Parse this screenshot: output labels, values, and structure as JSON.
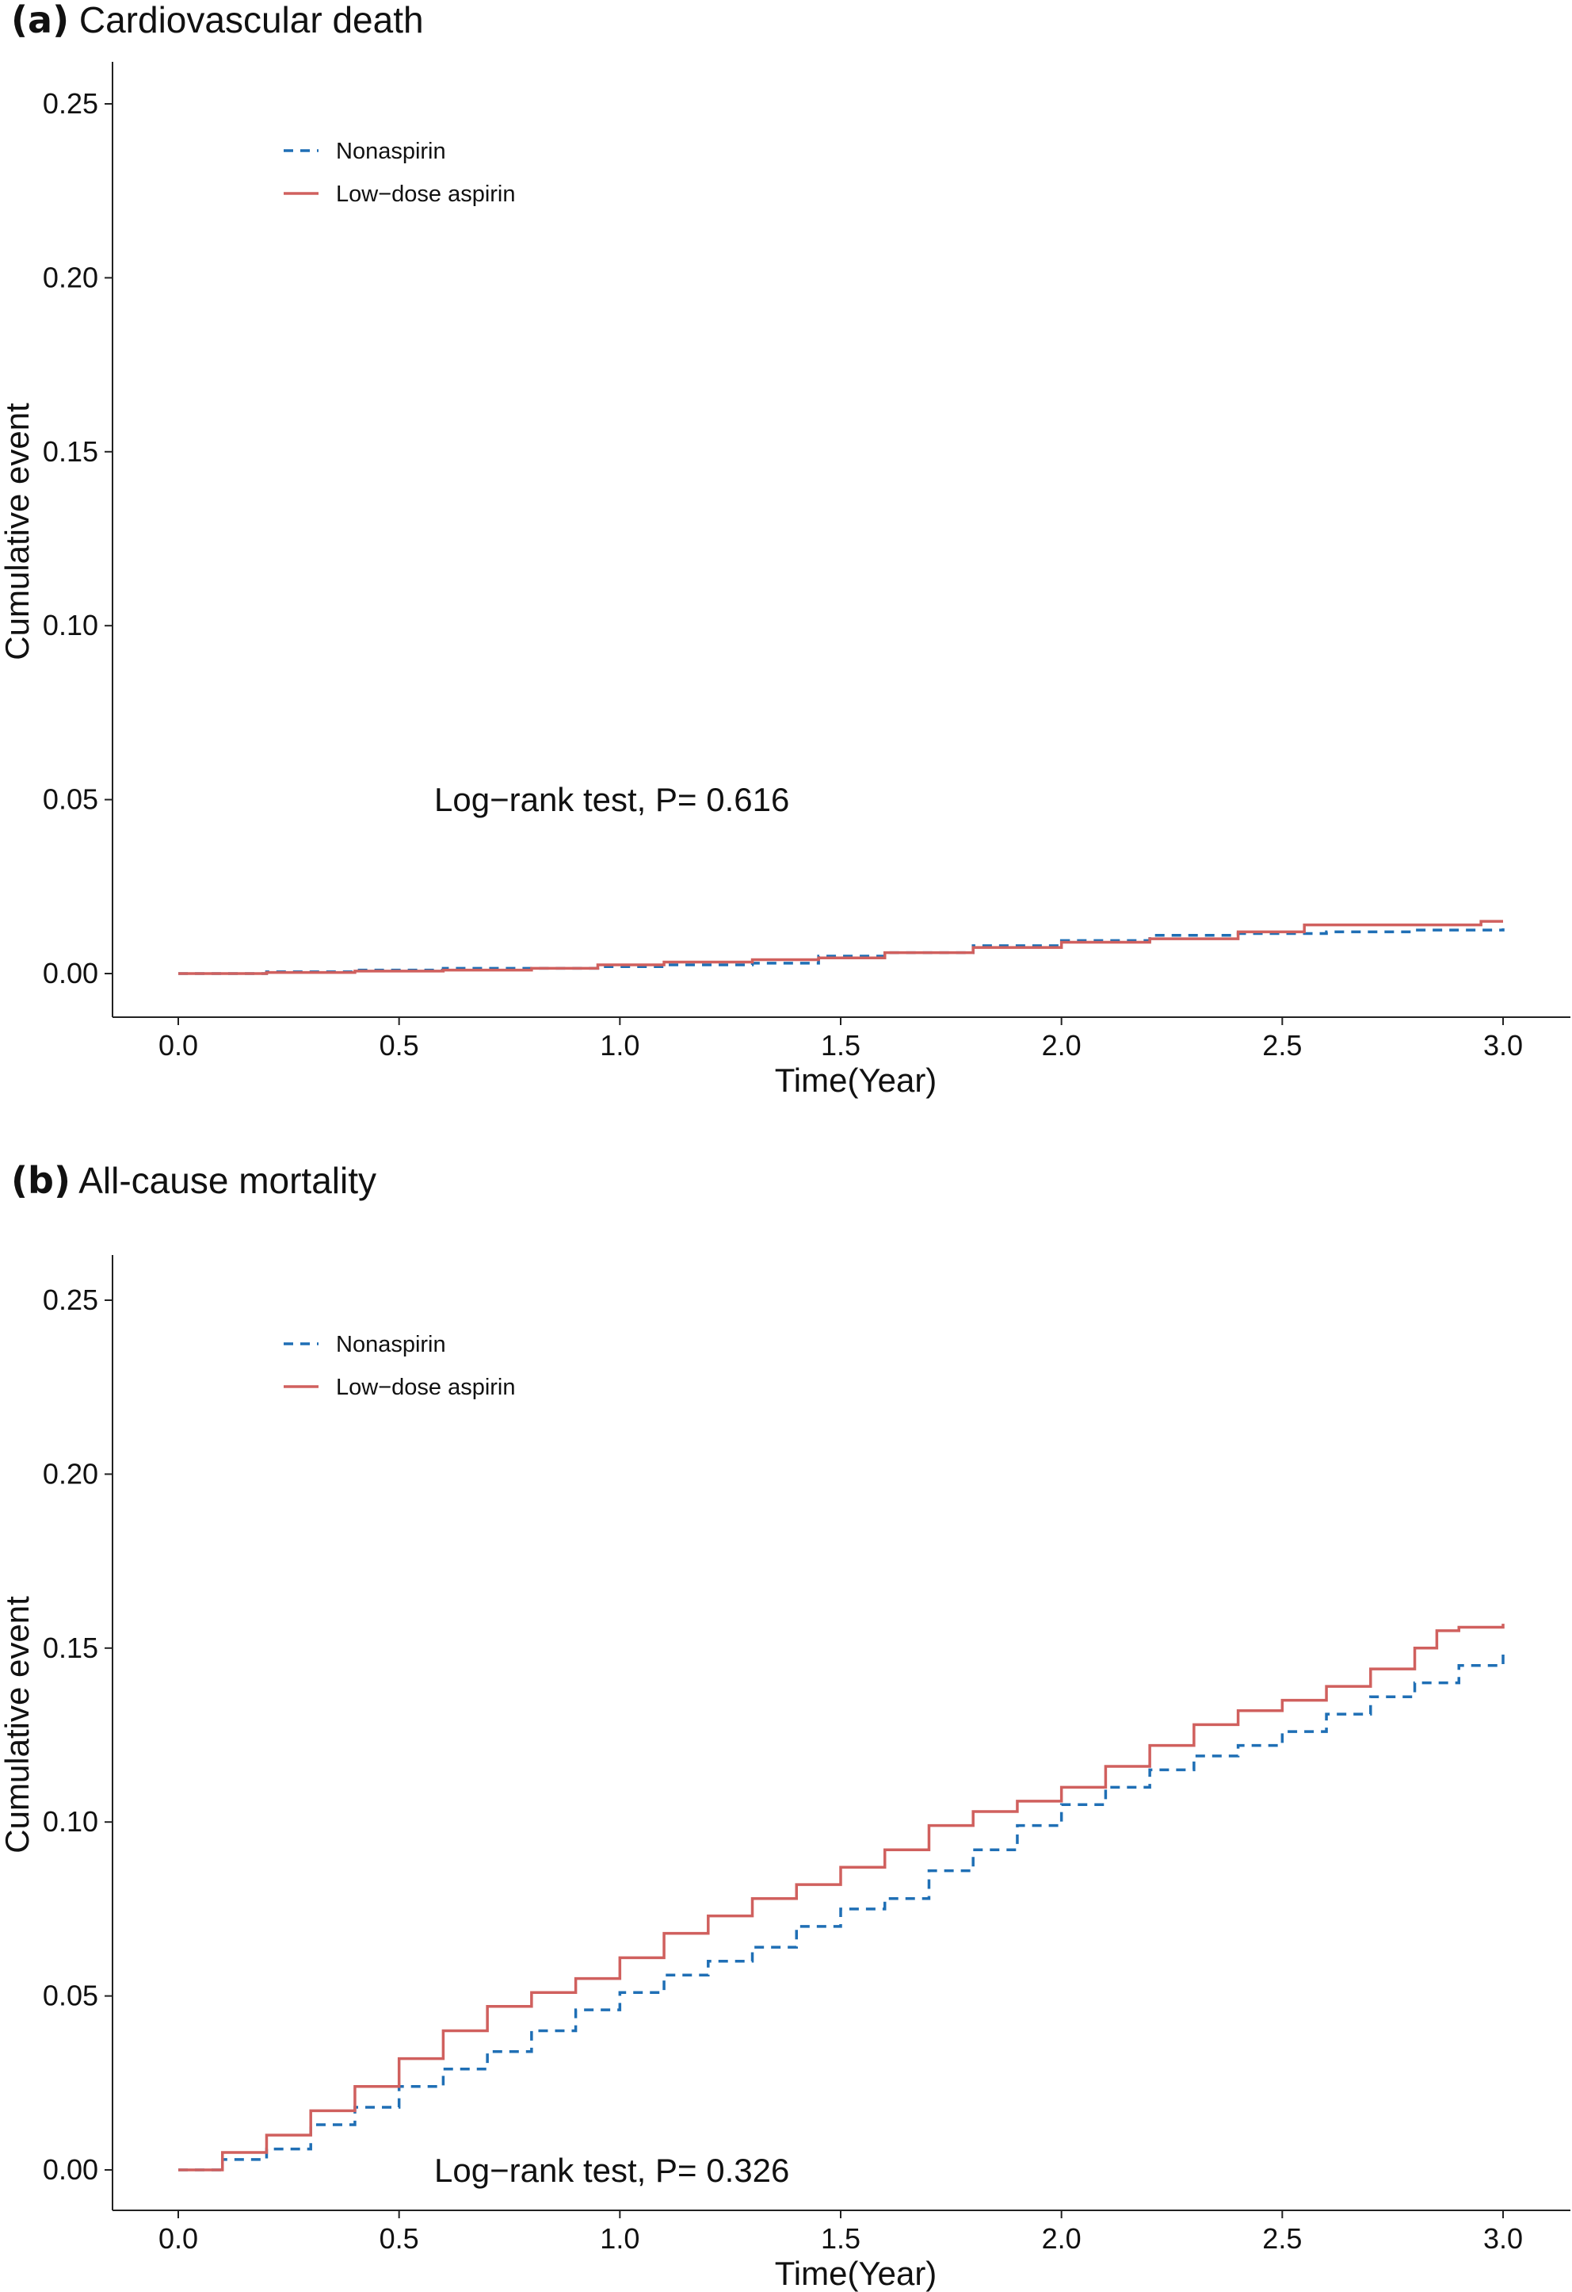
{
  "chart_data": [
    {
      "type": "line",
      "panel_letter": "(a)",
      "title": "Cardiovascular death",
      "xlabel": "Time(Year)",
      "ylabel": "Cumulative event",
      "xlim": [
        0,
        3
      ],
      "ylim": [
        0,
        0.25
      ],
      "x_ticks": [
        "0.0",
        "0.5",
        "1.0",
        "1.5",
        "2.0",
        "2.5",
        "3.0"
      ],
      "y_ticks": [
        "0.00",
        "0.05",
        "0.10",
        "0.15",
        "0.20",
        "0.25"
      ],
      "legend_position": "top-left",
      "annotation": "Log−rank test, P= 0.616",
      "series": [
        {
          "name": "Nonaspirin",
          "color": "#1f6fb5",
          "style": "dashed",
          "x": [
            0,
            0.2,
            0.4,
            0.6,
            0.8,
            0.95,
            1.1,
            1.3,
            1.45,
            1.6,
            1.8,
            2.0,
            2.2,
            2.4,
            2.6,
            2.8,
            3.0
          ],
          "y": [
            0,
            0.0005,
            0.001,
            0.0015,
            0.0015,
            0.002,
            0.0025,
            0.003,
            0.005,
            0.006,
            0.008,
            0.0095,
            0.011,
            0.0115,
            0.012,
            0.0125,
            0.013
          ]
        },
        {
          "name": "Low−dose aspirin",
          "color": "#d0605e",
          "style": "solid",
          "x": [
            0,
            0.2,
            0.4,
            0.6,
            0.8,
            0.95,
            1.1,
            1.3,
            1.45,
            1.6,
            1.8,
            2.0,
            2.2,
            2.4,
            2.55,
            2.8,
            2.95,
            3.0
          ],
          "y": [
            0,
            0.0003,
            0.0007,
            0.001,
            0.0015,
            0.0025,
            0.0033,
            0.004,
            0.0045,
            0.006,
            0.0075,
            0.009,
            0.01,
            0.012,
            0.014,
            0.014,
            0.015,
            0.015
          ]
        }
      ]
    },
    {
      "type": "line",
      "panel_letter": "(b)",
      "title": "All-cause mortality",
      "xlabel": "Time(Year)",
      "ylabel": "Cumulative event",
      "xlim": [
        0,
        3
      ],
      "ylim": [
        0,
        0.25
      ],
      "x_ticks": [
        "0.0",
        "0.5",
        "1.0",
        "1.5",
        "2.0",
        "2.5",
        "3.0"
      ],
      "y_ticks": [
        "0.00",
        "0.05",
        "0.10",
        "0.15",
        "0.20",
        "0.25"
      ],
      "legend_position": "top-left",
      "annotation": "Log−rank test, P= 0.326",
      "series": [
        {
          "name": "Nonaspirin",
          "color": "#1f6fb5",
          "style": "dashed",
          "x": [
            0,
            0.1,
            0.2,
            0.3,
            0.4,
            0.5,
            0.6,
            0.7,
            0.8,
            0.9,
            1.0,
            1.1,
            1.2,
            1.3,
            1.4,
            1.5,
            1.6,
            1.7,
            1.8,
            1.9,
            2.0,
            2.1,
            2.2,
            2.3,
            2.4,
            2.5,
            2.6,
            2.7,
            2.8,
            2.9,
            3.0
          ],
          "y": [
            0,
            0.003,
            0.006,
            0.013,
            0.018,
            0.024,
            0.029,
            0.034,
            0.04,
            0.046,
            0.051,
            0.056,
            0.06,
            0.064,
            0.07,
            0.075,
            0.078,
            0.086,
            0.092,
            0.099,
            0.105,
            0.11,
            0.115,
            0.119,
            0.122,
            0.126,
            0.131,
            0.136,
            0.14,
            0.145,
            0.15
          ]
        },
        {
          "name": "Low−dose aspirin",
          "color": "#d0605e",
          "style": "solid",
          "x": [
            0,
            0.1,
            0.2,
            0.3,
            0.4,
            0.5,
            0.6,
            0.7,
            0.8,
            0.9,
            1.0,
            1.1,
            1.2,
            1.3,
            1.4,
            1.5,
            1.6,
            1.7,
            1.8,
            1.9,
            2.0,
            2.1,
            2.2,
            2.3,
            2.4,
            2.5,
            2.6,
            2.7,
            2.8,
            2.85,
            2.9,
            3.0
          ],
          "y": [
            0,
            0.005,
            0.01,
            0.017,
            0.024,
            0.032,
            0.04,
            0.047,
            0.051,
            0.055,
            0.061,
            0.068,
            0.073,
            0.078,
            0.082,
            0.087,
            0.092,
            0.099,
            0.103,
            0.106,
            0.11,
            0.116,
            0.122,
            0.128,
            0.132,
            0.135,
            0.139,
            0.144,
            0.15,
            0.155,
            0.156,
            0.157
          ]
        }
      ]
    }
  ]
}
